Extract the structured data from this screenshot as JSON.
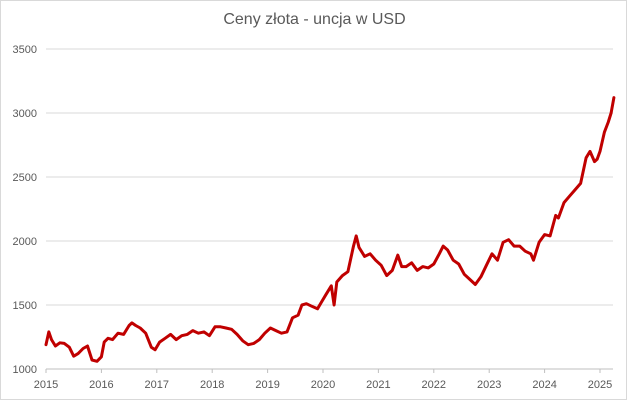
{
  "chart_data": {
    "type": "line",
    "title": "Ceny złota - uncja w USD",
    "xlabel": "",
    "ylabel": "",
    "xlim": [
      2015,
      2025.3
    ],
    "ylim": [
      1000,
      3500
    ],
    "x_ticks": [
      "2015",
      "2016",
      "2017",
      "2018",
      "2019",
      "2020",
      "2021",
      "2022",
      "2023",
      "2024",
      "2025"
    ],
    "y_ticks": [
      "1000",
      "1500",
      "2000",
      "2500",
      "3000",
      "3500"
    ],
    "grid": "horizontal",
    "legend": "none",
    "colors": {
      "line": "#c00000",
      "grid": "#d9d9d9",
      "text": "#595959"
    },
    "series": [
      {
        "x": [
          2015.0,
          2015.05,
          2015.1,
          2015.17,
          2015.25,
          2015.33,
          2015.42,
          2015.5,
          2015.58,
          2015.67,
          2015.75,
          2015.83,
          2015.92,
          2016.0,
          2016.05,
          2016.12,
          2016.2,
          2016.3,
          2016.4,
          2016.5,
          2016.55,
          2016.62,
          2016.7,
          2016.8,
          2016.9,
          2016.97,
          2017.05,
          2017.15,
          2017.25,
          2017.35,
          2017.45,
          2017.55,
          2017.65,
          2017.75,
          2017.85,
          2017.95,
          2018.05,
          2018.15,
          2018.25,
          2018.35,
          2018.45,
          2018.55,
          2018.65,
          2018.75,
          2018.85,
          2018.95,
          2019.05,
          2019.15,
          2019.25,
          2019.35,
          2019.45,
          2019.55,
          2019.62,
          2019.7,
          2019.8,
          2019.9,
          2019.97,
          2020.05,
          2020.15,
          2020.2,
          2020.25,
          2020.35,
          2020.45,
          2020.55,
          2020.6,
          2020.65,
          2020.75,
          2020.85,
          2020.95,
          2021.05,
          2021.15,
          2021.25,
          2021.35,
          2021.42,
          2021.5,
          2021.6,
          2021.7,
          2021.8,
          2021.9,
          2022.0,
          2022.1,
          2022.17,
          2022.25,
          2022.35,
          2022.45,
          2022.55,
          2022.65,
          2022.75,
          2022.85,
          2022.95,
          2023.05,
          2023.15,
          2023.25,
          2023.35,
          2023.45,
          2023.55,
          2023.65,
          2023.75,
          2023.8,
          2023.9,
          2024.0,
          2024.1,
          2024.2,
          2024.25,
          2024.35,
          2024.45,
          2024.55,
          2024.65,
          2024.75,
          2024.82,
          2024.9,
          2024.95,
          2025.0,
          2025.08,
          2025.15,
          2025.2,
          2025.25
        ],
        "values": [
          1190,
          1290,
          1230,
          1180,
          1205,
          1200,
          1170,
          1100,
          1120,
          1160,
          1180,
          1070,
          1060,
          1095,
          1210,
          1240,
          1230,
          1280,
          1270,
          1340,
          1360,
          1340,
          1320,
          1280,
          1170,
          1150,
          1210,
          1240,
          1270,
          1230,
          1260,
          1270,
          1300,
          1280,
          1290,
          1260,
          1330,
          1330,
          1320,
          1310,
          1270,
          1220,
          1190,
          1200,
          1230,
          1280,
          1320,
          1300,
          1280,
          1290,
          1400,
          1420,
          1500,
          1510,
          1490,
          1470,
          1520,
          1580,
          1650,
          1500,
          1680,
          1730,
          1760,
          1960,
          2040,
          1950,
          1880,
          1900,
          1850,
          1810,
          1730,
          1770,
          1890,
          1800,
          1800,
          1830,
          1770,
          1800,
          1790,
          1820,
          1900,
          1960,
          1930,
          1850,
          1820,
          1740,
          1700,
          1660,
          1720,
          1810,
          1900,
          1850,
          1990,
          2010,
          1960,
          1960,
          1920,
          1900,
          1850,
          1990,
          2050,
          2040,
          2200,
          2180,
          2300,
          2350,
          2400,
          2450,
          2650,
          2700,
          2620,
          2640,
          2700,
          2850,
          2930,
          3000,
          3120
        ]
      }
    ]
  }
}
